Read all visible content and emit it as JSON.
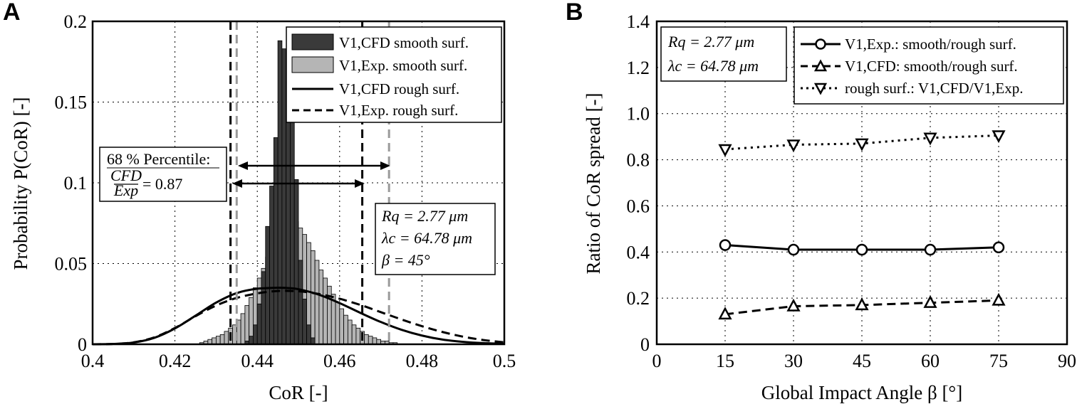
{
  "panel_a": {
    "letter": "A",
    "ylabel": "Probability P(CoR) [-]",
    "xlabel": "CoR [-]",
    "legend": [
      "V1,CFD smooth surf.",
      "V1,Exp. smooth surf.",
      "V1,CFD rough surf.",
      "V1,Exp. rough surf."
    ],
    "percentile_title": "68 % Percentile:",
    "percentile_frac_num": "CFD",
    "percentile_frac_den": "Exp",
    "percentile_value": "= 0.87",
    "params": [
      "Rq = 2.77 μm",
      "λc = 64.78 μm",
      "β = 45°"
    ]
  },
  "panel_b": {
    "letter": "B",
    "ylabel": "Ratio of CoR spread [-]",
    "xlabel": "Global Impact Angle β [°]",
    "params": [
      "Rq = 2.77 μm",
      "λc = 64.78 μm"
    ],
    "legend": [
      "V1,Exp.: smooth/rough surf.",
      "V1,CFD: smooth/rough surf.",
      "rough surf.: V1,CFD/V1,Exp."
    ]
  },
  "chart_data": [
    {
      "type": "bar",
      "panel": "A",
      "xlabel": "CoR [-]",
      "ylabel": "Probability P(CoR) [-]",
      "xlim": [
        0.4,
        0.5
      ],
      "ylim": [
        0,
        0.2
      ],
      "xticks": [
        "0.4",
        "0.42",
        "0.44",
        "0.46",
        "0.48",
        "0.5"
      ],
      "yticks": [
        "0",
        "0.05",
        "0.1",
        "0.15",
        "0.2"
      ],
      "grid": true,
      "legend_position": "top-right",
      "bin_width": 0.001,
      "series": [
        {
          "name": "V1,CFD smooth surf.",
          "kind": "histogram",
          "color": "#3a3a3a",
          "bin_left": [
            0.437,
            0.438,
            0.439,
            0.44,
            0.441,
            0.442,
            0.443,
            0.444,
            0.445,
            0.446,
            0.447,
            0.448,
            0.449,
            0.45,
            0.451,
            0.452,
            0.453
          ],
          "values": [
            0.002,
            0.005,
            0.012,
            0.025,
            0.045,
            0.073,
            0.098,
            0.128,
            0.188,
            0.183,
            0.163,
            0.148,
            0.102,
            0.052,
            0.028,
            0.012,
            0.004
          ]
        },
        {
          "name": "V1,Exp. smooth surf.",
          "kind": "histogram",
          "color": "#b5b5b5",
          "bin_left": [
            0.426,
            0.427,
            0.428,
            0.429,
            0.43,
            0.431,
            0.432,
            0.433,
            0.434,
            0.435,
            0.436,
            0.437,
            0.438,
            0.439,
            0.44,
            0.441,
            0.442,
            0.443,
            0.444,
            0.445,
            0.446,
            0.447,
            0.448,
            0.449,
            0.45,
            0.451,
            0.452,
            0.453,
            0.454,
            0.455,
            0.456,
            0.457,
            0.458,
            0.459,
            0.46,
            0.461,
            0.462,
            0.463,
            0.464,
            0.465,
            0.466,
            0.467,
            0.468,
            0.469,
            0.47,
            0.471,
            0.472,
            0.473
          ],
          "values": [
            0.001,
            0.002,
            0.003,
            0.004,
            0.005,
            0.006,
            0.008,
            0.01,
            0.012,
            0.015,
            0.019,
            0.024,
            0.029,
            0.035,
            0.041,
            0.047,
            0.054,
            0.061,
            0.068,
            0.074,
            0.078,
            0.08,
            0.079,
            0.076,
            0.072,
            0.068,
            0.063,
            0.058,
            0.052,
            0.046,
            0.041,
            0.036,
            0.031,
            0.026,
            0.022,
            0.018,
            0.015,
            0.012,
            0.01,
            0.008,
            0.006,
            0.005,
            0.004,
            0.003,
            0.002,
            0.002,
            0.001,
            0.001
          ]
        },
        {
          "name": "V1,CFD rough surf.",
          "kind": "line",
          "style": "solid",
          "x": [
            0.4,
            0.405,
            0.41,
            0.415,
            0.42,
            0.425,
            0.43,
            0.435,
            0.44,
            0.445,
            0.4475,
            0.45,
            0.455,
            0.46,
            0.465,
            0.47,
            0.475,
            0.48,
            0.485,
            0.49,
            0.495,
            0.5
          ],
          "values": [
            0.0,
            0.0002,
            0.0011,
            0.004,
            0.0098,
            0.0177,
            0.0258,
            0.0317,
            0.0344,
            0.035,
            0.0348,
            0.0341,
            0.0307,
            0.0255,
            0.0195,
            0.0138,
            0.009,
            0.0054,
            0.0029,
            0.0015,
            0.0007,
            0.0003
          ]
        },
        {
          "name": "V1,Exp. rough surf.",
          "kind": "line",
          "style": "dashed",
          "x": [
            0.4,
            0.405,
            0.41,
            0.415,
            0.42,
            0.425,
            0.43,
            0.435,
            0.44,
            0.445,
            0.45,
            0.455,
            0.46,
            0.465,
            0.47,
            0.475,
            0.48,
            0.485,
            0.49,
            0.495,
            0.5
          ],
          "values": [
            0.0,
            0.0002,
            0.0012,
            0.0043,
            0.0101,
            0.0174,
            0.024,
            0.0287,
            0.0315,
            0.033,
            0.0328,
            0.0311,
            0.0282,
            0.0244,
            0.0199,
            0.0154,
            0.0112,
            0.0076,
            0.0047,
            0.0026,
            0.0012
          ]
        }
      ],
      "percentile_bounds_cfd": [
        0.4335,
        0.4655
      ],
      "percentile_bounds_exp": [
        0.435,
        0.472
      ]
    },
    {
      "type": "line",
      "panel": "B",
      "xlabel": "Global Impact Angle β [°]",
      "ylabel": "Ratio of CoR spread [-]",
      "xlim": [
        0,
        90
      ],
      "ylim": [
        0,
        1.4
      ],
      "xticks": [
        "0",
        "15",
        "30",
        "45",
        "60",
        "75",
        "90"
      ],
      "yticks": [
        "0",
        "0.2",
        "0.4",
        "0.6",
        "0.8",
        "1.0",
        "1.2",
        "1.4"
      ],
      "grid": true,
      "legend_position": "top-right",
      "x": [
        15,
        30,
        45,
        60,
        75
      ],
      "series": [
        {
          "name": "V1,Exp.: smooth/rough surf.",
          "marker": "circle",
          "style": "solid",
          "values": [
            0.43,
            0.41,
            0.41,
            0.41,
            0.42
          ]
        },
        {
          "name": "V1,CFD: smooth/rough surf.",
          "marker": "triangle-up",
          "style": "dashed",
          "values": [
            0.13,
            0.165,
            0.17,
            0.18,
            0.19
          ]
        },
        {
          "name": "rough surf.: V1,CFD/V1,Exp.",
          "marker": "triangle-down",
          "style": "dotted",
          "values": [
            0.845,
            0.865,
            0.87,
            0.895,
            0.905
          ]
        }
      ]
    }
  ]
}
